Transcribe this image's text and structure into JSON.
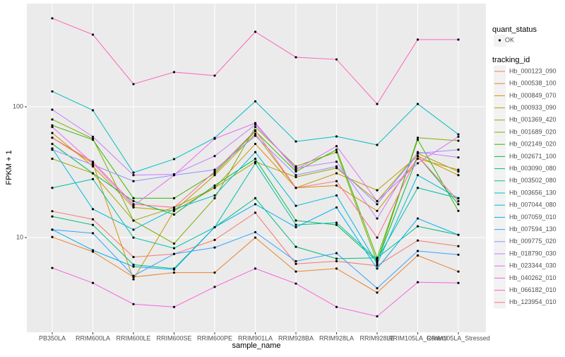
{
  "chart_data": {
    "type": "line",
    "log_scale": true,
    "grid": true,
    "x_label": "sample_name",
    "y_label": "FPKM + 1",
    "categories": [
      "PB350LA",
      "RRIM600LA",
      "RRIM600LE",
      "RRIM600SE",
      "RRIM600PE",
      "RRIM901LA",
      "RRIM928BA",
      "RRIM928LA",
      "RRIM928LE",
      "RRIM105LA_Control",
      "RRIM105LA_Stressed"
    ],
    "ylim": [
      1.89,
      615
    ],
    "yticks": [
      10,
      100
    ],
    "point_legend": {
      "title": "quant_status",
      "labels": [
        "OK"
      ]
    },
    "legend_title": "tracking_id",
    "series": [
      {
        "name": "Hb_000123_090",
        "color": "#F8766D",
        "values": [
          15.9,
          13.8,
          7.1,
          7.5,
          9.6,
          15.5,
          6.3,
          6.6,
          6.1,
          9.5,
          8.6
        ]
      },
      {
        "name": "Hb_000538_100",
        "color": "#EA8331",
        "values": [
          10.1,
          7.8,
          5.0,
          5.4,
          5.4,
          10.0,
          5.5,
          5.8,
          3.8,
          7.3,
          5.5
        ]
      },
      {
        "name": "Hb_000849_070",
        "color": "#D89000",
        "values": [
          58,
          37,
          4.8,
          16,
          24,
          52,
          24,
          25,
          16,
          40,
          33
        ]
      },
      {
        "name": "Hb_000933_090",
        "color": "#C09B00",
        "values": [
          63,
          35,
          17,
          16,
          30,
          62,
          24,
          31,
          23,
          42,
          30
        ]
      },
      {
        "name": "Hb_001369_420",
        "color": "#A3A500",
        "values": [
          40,
          31,
          13.5,
          17,
          24,
          38,
          29,
          34,
          19,
          44,
          32
        ]
      },
      {
        "name": "Hb_001689_020",
        "color": "#7CAE00",
        "values": [
          80,
          57,
          13.5,
          9,
          20,
          70,
          35,
          45,
          6.5,
          58,
          55
        ]
      },
      {
        "name": "Hb_002149_020",
        "color": "#39B600",
        "values": [
          72,
          56,
          20,
          20,
          31,
          65,
          32,
          47,
          7,
          56,
          16
        ]
      },
      {
        "name": "Hb_002671_100",
        "color": "#00BB4E",
        "values": [
          52,
          31,
          19,
          15,
          25,
          40,
          13.5,
          12.5,
          6.6,
          42,
          18
        ]
      },
      {
        "name": "Hb_003090_080",
        "color": "#00BF7D",
        "values": [
          14.5,
          12.5,
          6.2,
          5.8,
          12,
          20,
          8.5,
          6.9,
          7,
          12.2,
          10.5
        ]
      },
      {
        "name": "Hb_003502_080",
        "color": "#00C1A3",
        "values": [
          24,
          28,
          10,
          8.3,
          12,
          37,
          12.5,
          13,
          6.8,
          24,
          20
        ]
      },
      {
        "name": "Hb_003656_130",
        "color": "#00BFC4",
        "values": [
          131,
          94,
          31.4,
          39.8,
          57.8,
          110,
          54.3,
          59.3,
          51.1,
          105,
          61.5
        ]
      },
      {
        "name": "Hb_007044_080",
        "color": "#00BAE0",
        "values": [
          48,
          16.5,
          11.5,
          16.5,
          21,
          45,
          17.5,
          21,
          6.3,
          30,
          20
        ]
      },
      {
        "name": "Hb_007059_010",
        "color": "#00B0F6",
        "values": [
          11.5,
          8,
          6,
          5.7,
          12,
          18,
          12,
          17,
          5.8,
          14,
          10.5
        ]
      },
      {
        "name": "Hb_007594_130",
        "color": "#35A2FF",
        "values": [
          11.5,
          10.8,
          5.1,
          7.5,
          8.4,
          11,
          6.6,
          7.6,
          4.1,
          7.9,
          7.4
        ]
      },
      {
        "name": "Hb_009775_020",
        "color": "#9590FF",
        "values": [
          47,
          36,
          27,
          30,
          33,
          60,
          30,
          35,
          18,
          44,
          47
        ]
      },
      {
        "name": "Hb_018790_030",
        "color": "#C77CFF",
        "values": [
          95,
          59,
          30,
          30.5,
          42,
          73,
          34,
          38,
          14,
          45,
          41
        ]
      },
      {
        "name": "Hb_023344_030",
        "color": "#E76BF3",
        "values": [
          70,
          37,
          17.5,
          30,
          57,
          75,
          33,
          50,
          19,
          37,
          59
        ]
      },
      {
        "name": "Hb_040262_010",
        "color": "#FA62DB",
        "values": [
          5.86,
          4.5,
          3.1,
          2.95,
          4.2,
          5.8,
          4.45,
          2.95,
          2.5,
          4.56,
          4.5
        ]
      },
      {
        "name": "Hb_066182_010",
        "color": "#FF62BC",
        "values": [
          474,
          356,
          149,
          184,
          173,
          374,
          239,
          230,
          105,
          326,
          326
        ]
      },
      {
        "name": "Hb_123954_010",
        "color": "#FF6C91",
        "values": [
          58,
          38,
          18,
          17,
          32,
          66,
          24,
          27,
          10,
          42,
          19
        ]
      }
    ]
  }
}
